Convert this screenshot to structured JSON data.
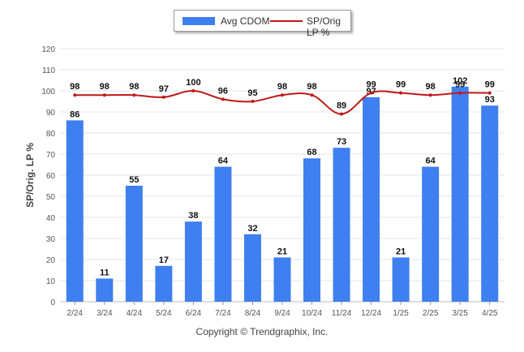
{
  "legend": {
    "bar_label": "Avg CDOM",
    "line_label": "SP/Orig LP %"
  },
  "copyright": "Copyright © Trendgraphix, Inc.",
  "colors": {
    "bar": "#3f7ff0",
    "line": "#c01818",
    "grid": "#e6e6e6",
    "axis_text": "#555555",
    "label_text": "#111111"
  },
  "chart_data": {
    "type": "bar",
    "categories": [
      "2/24",
      "3/24",
      "4/24",
      "5/24",
      "6/24",
      "7/24",
      "8/24",
      "9/24",
      "10/24",
      "11/24",
      "12/24",
      "1/25",
      "2/25",
      "3/25",
      "4/25"
    ],
    "series": [
      {
        "name": "Avg CDOM",
        "type": "bar",
        "values": [
          86,
          11,
          55,
          17,
          38,
          64,
          32,
          21,
          68,
          73,
          97,
          21,
          64,
          102,
          93
        ]
      },
      {
        "name": "SP/Orig LP %",
        "type": "line",
        "values": [
          98,
          98,
          98,
          97,
          100,
          96,
          95,
          98,
          98,
          89,
          99,
          99,
          98,
          99,
          99
        ]
      }
    ],
    "ylabel": "SP/Orig. LP %",
    "xlabel": "",
    "ylim": [
      0,
      120
    ],
    "yticks": [
      0,
      10,
      20,
      30,
      40,
      50,
      60,
      70,
      80,
      90,
      100,
      110,
      120
    ],
    "grid": true,
    "legend_position": "top-center"
  }
}
